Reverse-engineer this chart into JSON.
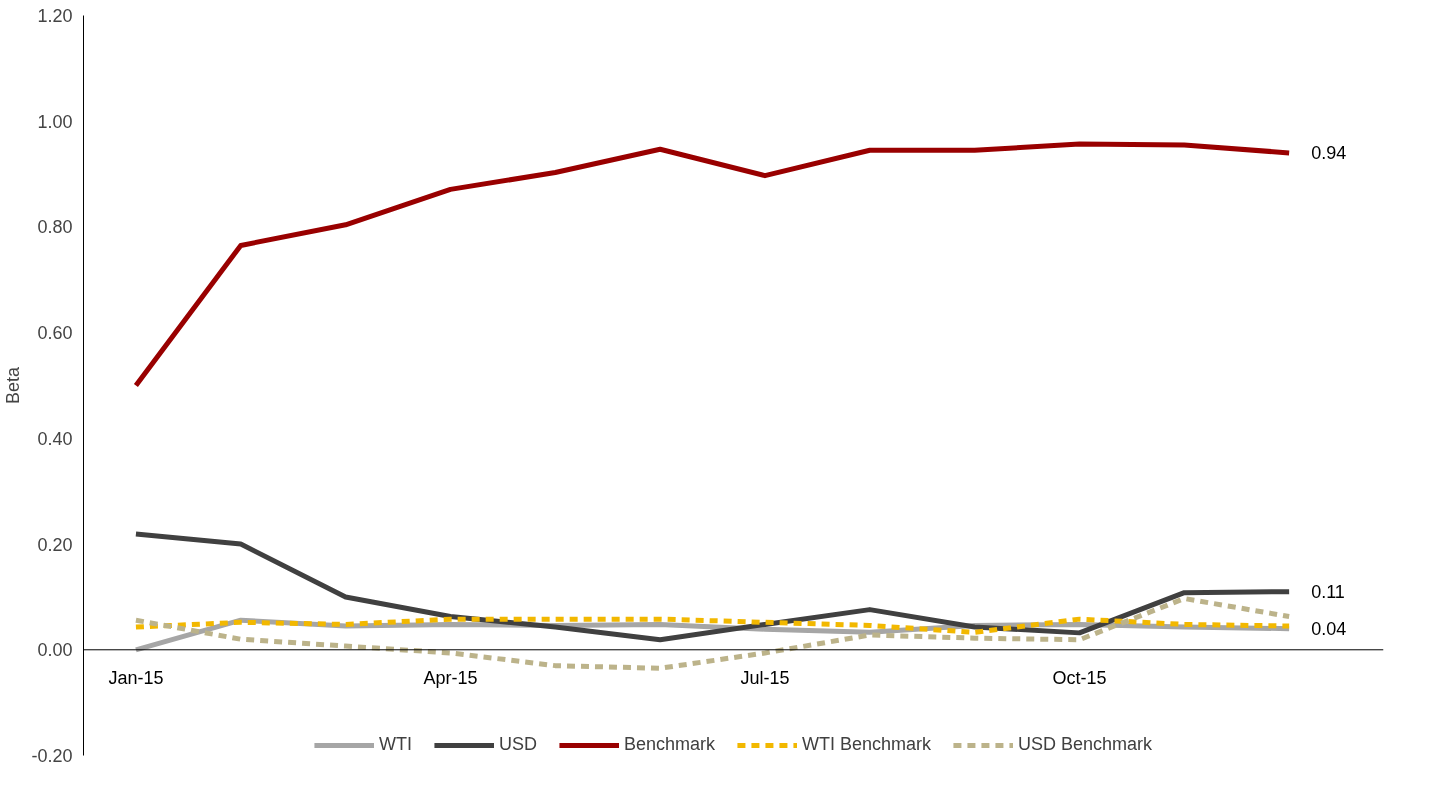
{
  "chart_data": {
    "type": "line",
    "ylabel": "Beta",
    "categories": [
      "Jan-15",
      null,
      null,
      "Apr-15",
      null,
      null,
      "Jul-15",
      null,
      null,
      "Oct-15",
      null,
      null
    ],
    "ylim": [
      -0.2,
      1.2
    ],
    "yticks": [
      {
        "value": -0.2,
        "label": "-0.20"
      },
      {
        "value": 0,
        "label": "0.00"
      },
      {
        "value": 0.2,
        "label": "0.20"
      },
      {
        "value": 0.4,
        "label": "0.40"
      },
      {
        "value": 0.6,
        "label": "0.60"
      },
      {
        "value": 0.8,
        "label": "0.80"
      },
      {
        "value": 1.0,
        "label": "1.00"
      },
      {
        "value": 1.2,
        "label": "1.20"
      }
    ],
    "grid": false,
    "legend": "bottom",
    "marker": "none",
    "series": [
      {
        "name": "WTI",
        "color": "#a6a6a6",
        "line_style": "solid",
        "values": [
          0.0,
          0.056,
          0.045,
          0.048,
          0.046,
          0.048,
          0.039,
          0.033,
          0.046,
          0.048,
          0.043,
          0.04
        ],
        "value_labels": [
          null,
          null,
          null,
          null,
          null,
          null,
          null,
          null,
          null,
          null,
          null,
          "0.04"
        ]
      },
      {
        "name": "USD",
        "color": "#404040",
        "line_style": "solid",
        "values": [
          0.219,
          0.2,
          0.1,
          0.063,
          0.043,
          0.019,
          0.048,
          0.076,
          0.043,
          0.032,
          0.108,
          0.11
        ],
        "value_labels": [
          null,
          null,
          null,
          null,
          null,
          null,
          null,
          null,
          null,
          null,
          null,
          "0.11"
        ]
      },
      {
        "name": "Benchmark",
        "color": "#990000",
        "line_style": "solid",
        "values": [
          0.5,
          0.765,
          0.804,
          0.871,
          0.903,
          0.947,
          0.897,
          0.945,
          0.945,
          0.957,
          0.955,
          0.94
        ],
        "value_labels": [
          null,
          null,
          null,
          null,
          null,
          null,
          null,
          null,
          null,
          null,
          null,
          "0.94"
        ]
      },
      {
        "name": "WTI Benchmark",
        "color": "#f2b800",
        "line_style": "dashed",
        "values": [
          0.043,
          0.052,
          0.048,
          0.058,
          0.058,
          0.058,
          0.052,
          0.046,
          0.033,
          0.058,
          0.048,
          0.045
        ]
      },
      {
        "name": "USD Benchmark",
        "color": "#bcb38a",
        "line_style": "dashed",
        "values": [
          0.056,
          0.02,
          0.007,
          -0.006,
          -0.03,
          -0.035,
          -0.006,
          0.028,
          0.022,
          0.019,
          0.097,
          0.063
        ]
      }
    ]
  }
}
